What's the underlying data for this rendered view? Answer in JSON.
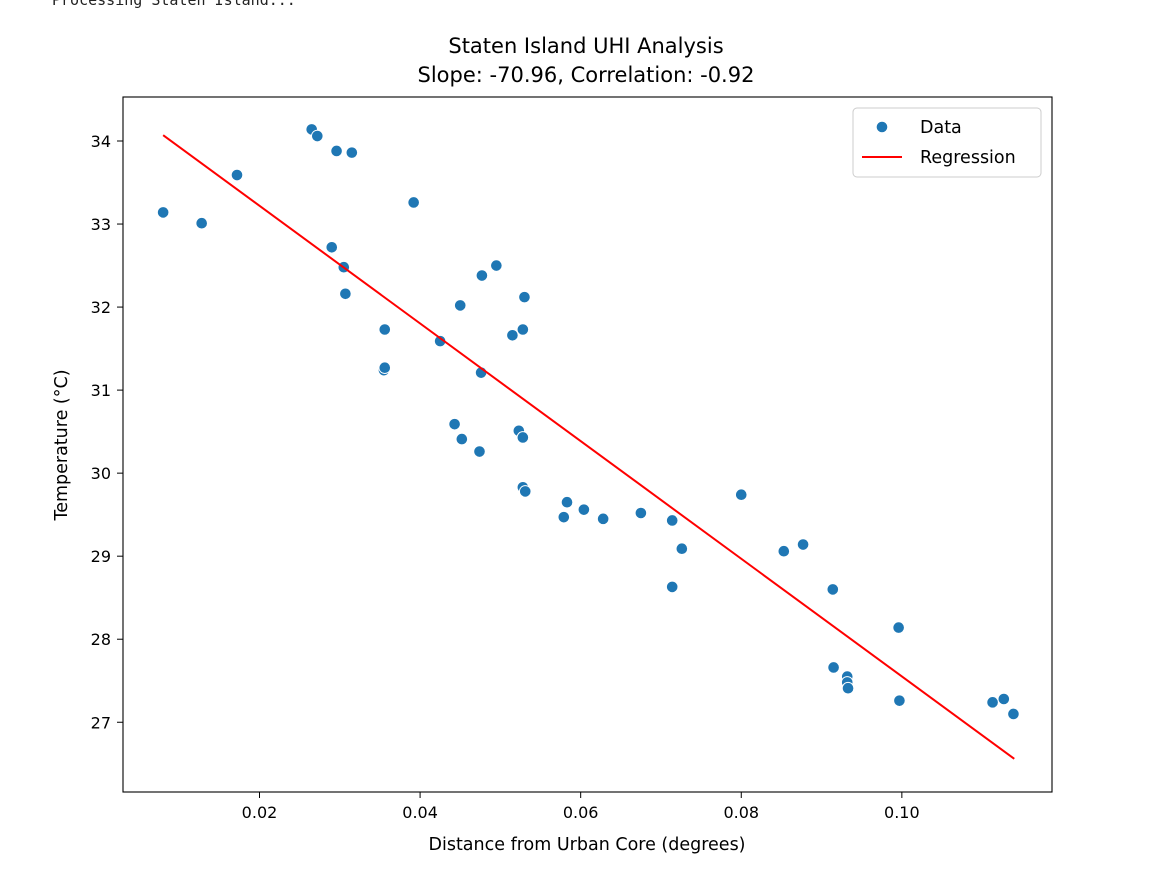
{
  "console": {
    "output_line": "Processing Staten Island..."
  },
  "chart_data": {
    "type": "scatter",
    "title": "Staten Island UHI Analysis",
    "subtitle": "Slope: -70.96, Correlation: -0.92",
    "xlabel": "Distance from Urban Core (degrees)",
    "ylabel": "Temperature (°C)",
    "xlim": [
      0.003,
      0.1187
    ],
    "ylim": [
      26.16,
      34.53
    ],
    "xticks": [
      0.02,
      0.04,
      0.06,
      0.08,
      0.1
    ],
    "xtick_labels": [
      "0.02",
      "0.04",
      "0.06",
      "0.08",
      "0.10"
    ],
    "yticks": [
      27,
      28,
      29,
      30,
      31,
      32,
      33,
      34
    ],
    "ytick_labels": [
      "27",
      "28",
      "29",
      "30",
      "31",
      "32",
      "33",
      "34"
    ],
    "grid": false,
    "legend": {
      "placement": "top-right",
      "entries": [
        "Data",
        "Regression"
      ]
    },
    "series": [
      {
        "name": "Data",
        "kind": "scatter",
        "color": "#1f77b4",
        "points": [
          [
            0.008,
            33.14
          ],
          [
            0.0128,
            33.01
          ],
          [
            0.0172,
            33.59
          ],
          [
            0.0265,
            34.14
          ],
          [
            0.0272,
            34.06
          ],
          [
            0.0296,
            33.88
          ],
          [
            0.0315,
            33.86
          ],
          [
            0.029,
            32.72
          ],
          [
            0.0305,
            32.48
          ],
          [
            0.0307,
            32.16
          ],
          [
            0.0392,
            33.26
          ],
          [
            0.0356,
            31.73
          ],
          [
            0.0355,
            31.24
          ],
          [
            0.0356,
            31.27
          ],
          [
            0.0425,
            31.59
          ],
          [
            0.045,
            32.02
          ],
          [
            0.0477,
            32.38
          ],
          [
            0.0495,
            32.5
          ],
          [
            0.053,
            32.12
          ],
          [
            0.0528,
            31.73
          ],
          [
            0.0515,
            31.66
          ],
          [
            0.0476,
            31.21
          ],
          [
            0.0443,
            30.59
          ],
          [
            0.0452,
            30.41
          ],
          [
            0.0474,
            30.26
          ],
          [
            0.0523,
            30.51
          ],
          [
            0.0528,
            30.43
          ],
          [
            0.0528,
            29.83
          ],
          [
            0.0531,
            29.78
          ],
          [
            0.0583,
            29.65
          ],
          [
            0.0579,
            29.47
          ],
          [
            0.0604,
            29.56
          ],
          [
            0.0628,
            29.45
          ],
          [
            0.0675,
            29.52
          ],
          [
            0.0714,
            29.43
          ],
          [
            0.0726,
            29.09
          ],
          [
            0.0714,
            28.63
          ],
          [
            0.08,
            29.74
          ],
          [
            0.0853,
            29.06
          ],
          [
            0.0877,
            29.14
          ],
          [
            0.0914,
            28.6
          ],
          [
            0.0915,
            27.66
          ],
          [
            0.0932,
            27.55
          ],
          [
            0.0932,
            27.48
          ],
          [
            0.0933,
            27.41
          ],
          [
            0.0996,
            28.14
          ],
          [
            0.0997,
            27.26
          ],
          [
            0.1113,
            27.24
          ],
          [
            0.1127,
            27.28
          ],
          [
            0.1139,
            27.1
          ]
        ]
      },
      {
        "name": "Regression",
        "kind": "line",
        "color": "#ff0000",
        "x": [
          0.008,
          0.114
        ],
        "y": [
          34.07,
          26.56
        ]
      }
    ]
  }
}
